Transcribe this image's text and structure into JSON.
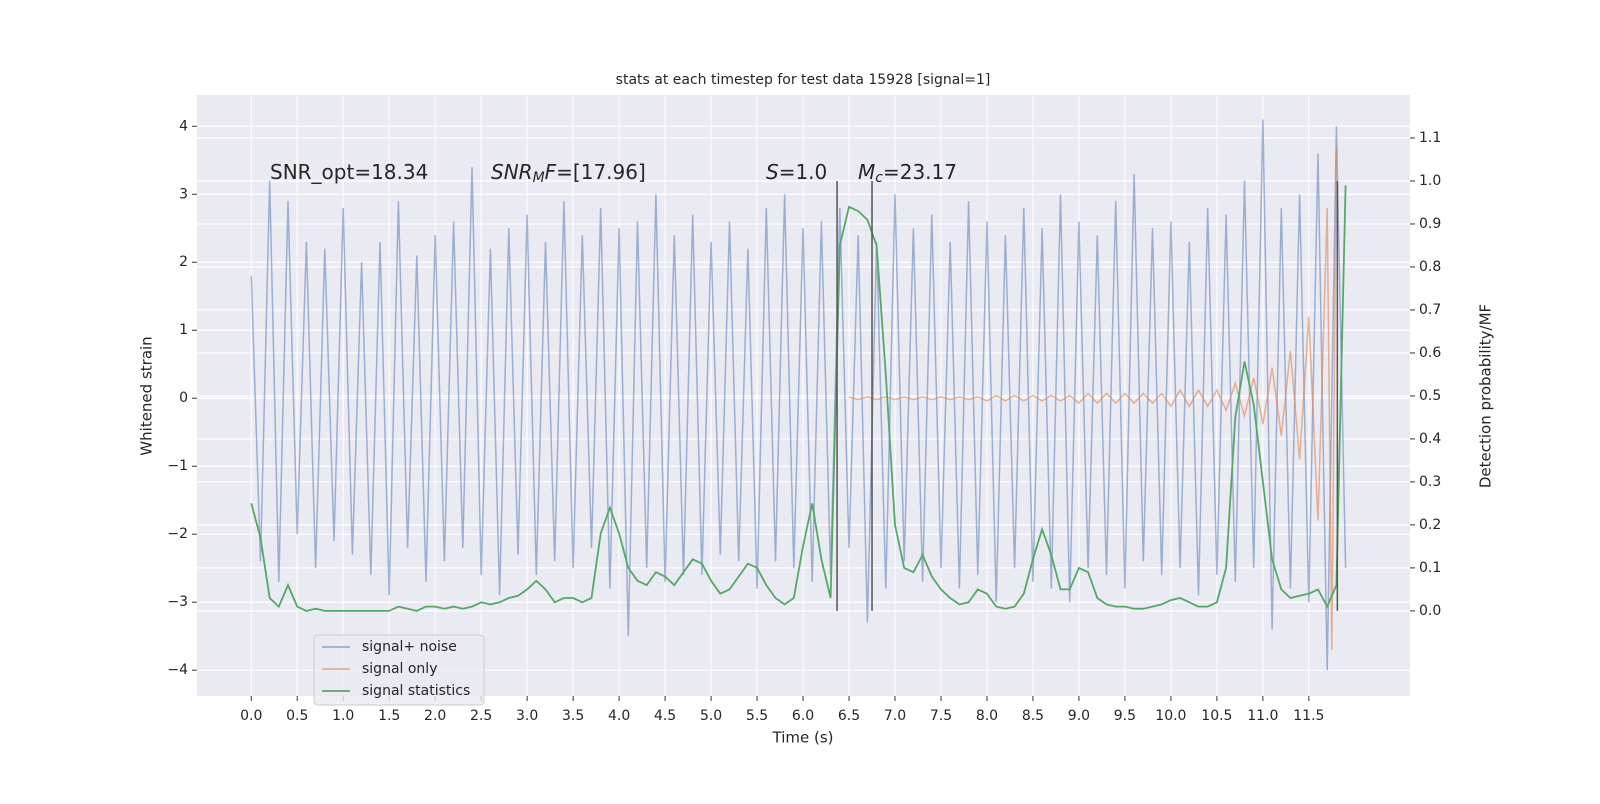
{
  "chart_data": {
    "type": "line",
    "title": "stats at each timestep for test data 15928 [signal=1]",
    "xlabel": "Time (s)",
    "ylabel": "Whitened strain",
    "y2label": "Detection probability/MF",
    "annotations": [
      [
        {
          "text": "SNR_opt=18.34",
          "style": "normal"
        }
      ],
      [
        {
          "text": "SNR",
          "style": "italic"
        },
        {
          "text": "M",
          "style": "sub"
        },
        {
          "text": "F",
          "style": "italic"
        },
        {
          "text": "=[17.96]",
          "style": "normal"
        }
      ],
      [
        {
          "text": "S",
          "style": "italic"
        },
        {
          "text": "=1.0",
          "style": "normal"
        }
      ],
      [
        {
          "text": "M",
          "style": "italic"
        },
        {
          "text": "c",
          "style": "sub"
        },
        {
          "text": "=23.17",
          "style": "normal"
        }
      ]
    ],
    "x": [
      0,
      0.1,
      0.2,
      0.3,
      0.4,
      0.5,
      0.6,
      0.7,
      0.8,
      0.9,
      1,
      1.1,
      1.2,
      1.3,
      1.4,
      1.5,
      1.6,
      1.7,
      1.8,
      1.9,
      2,
      2.1,
      2.2,
      2.3,
      2.4,
      2.5,
      2.6,
      2.7,
      2.8,
      2.9,
      3,
      3.1,
      3.2,
      3.3,
      3.4,
      3.5,
      3.6,
      3.7,
      3.8,
      3.9,
      4,
      4.1,
      4.2,
      4.3,
      4.4,
      4.5,
      4.6,
      4.7,
      4.8,
      4.9,
      5,
      5.1,
      5.2,
      5.3,
      5.4,
      5.5,
      5.6,
      5.7,
      5.8,
      5.9,
      6,
      6.1,
      6.2,
      6.3,
      6.4,
      6.5,
      6.6,
      6.7,
      6.8,
      6.9,
      7,
      7.1,
      7.2,
      7.3,
      7.4,
      7.5,
      7.6,
      7.7,
      7.8,
      7.9,
      8,
      8.1,
      8.2,
      8.3,
      8.4,
      8.5,
      8.6,
      8.7,
      8.8,
      8.9,
      9,
      9.1,
      9.2,
      9.3,
      9.4,
      9.5,
      9.6,
      9.7,
      9.8,
      9.9,
      10,
      10.1,
      10.2,
      10.3,
      10.4,
      10.5,
      10.6,
      10.7,
      10.8,
      10.9,
      11,
      11.1,
      11.2,
      11.3,
      11.4,
      11.5,
      11.6,
      11.7,
      11.8,
      11.9
    ],
    "series": [
      {
        "name": "signal+ noise",
        "color": "#4c72b0",
        "opacity": 0.5,
        "axis": "y",
        "values": [
          1.8,
          -2.4,
          3.2,
          -2.7,
          2.9,
          -2.0,
          2.3,
          -2.5,
          2.2,
          -2.1,
          2.8,
          -2.3,
          2.0,
          -2.6,
          2.3,
          -2.9,
          2.9,
          -2.2,
          2.1,
          -2.7,
          2.4,
          -2.4,
          2.6,
          -2.2,
          3.4,
          -2.6,
          2.2,
          -2.9,
          2.5,
          -2.3,
          2.7,
          -2.6,
          2.3,
          -2.4,
          2.9,
          -2.5,
          2.4,
          -2.2,
          2.8,
          -2.8,
          2.5,
          -3.5,
          2.6,
          -2.5,
          3.0,
          -2.7,
          2.4,
          -2.6,
          2.7,
          -2.6,
          2.3,
          -2.3,
          2.6,
          -2.4,
          2.2,
          -2.8,
          2.8,
          -2.4,
          3.0,
          -2.5,
          2.5,
          -2.7,
          2.6,
          -2.6,
          2.8,
          -2.2,
          2.4,
          -3.3,
          2.3,
          -2.8,
          3.0,
          -2.4,
          2.5,
          -2.7,
          2.7,
          -2.5,
          2.3,
          -2.8,
          2.9,
          -2.6,
          2.6,
          -3.0,
          2.4,
          -2.5,
          2.8,
          -2.7,
          2.5,
          -2.8,
          3.0,
          -3.0,
          2.6,
          -2.5,
          2.4,
          -2.6,
          2.9,
          -2.8,
          3.3,
          -2.4,
          2.5,
          -2.6,
          2.6,
          -2.5,
          2.3,
          -2.9,
          2.8,
          -2.6,
          2.7,
          -2.7,
          3.2,
          -2.5,
          4.1,
          -3.4,
          2.8,
          -2.8,
          3.0,
          -3.0,
          3.6,
          -4.0,
          4.0,
          -2.5
        ]
      },
      {
        "name": "signal only",
        "color": "#dd8452",
        "opacity": 0.6,
        "axis": "y",
        "x": [
          6.5,
          6.6,
          6.7,
          6.8,
          6.9,
          7,
          7.1,
          7.2,
          7.3,
          7.4,
          7.5,
          7.6,
          7.7,
          7.8,
          7.9,
          8,
          8.1,
          8.2,
          8.3,
          8.4,
          8.5,
          8.6,
          8.7,
          8.8,
          8.9,
          9,
          9.1,
          9.2,
          9.3,
          9.4,
          9.5,
          9.6,
          9.7,
          9.8,
          9.9,
          10,
          10.1,
          10.2,
          10.3,
          10.4,
          10.5,
          10.6,
          10.7,
          10.8,
          10.9,
          11,
          11.1,
          11.2,
          11.3,
          11.4,
          11.5,
          11.6,
          11.7,
          11.75,
          11.8
        ],
        "values": [
          0.02,
          -0.02,
          0.02,
          -0.02,
          0.02,
          -0.02,
          0.02,
          -0.02,
          0.02,
          -0.02,
          0.02,
          -0.02,
          0.02,
          -0.02,
          0.02,
          -0.04,
          0.04,
          -0.04,
          0.04,
          -0.04,
          0.04,
          -0.04,
          0.04,
          -0.04,
          0.04,
          -0.07,
          0.07,
          -0.07,
          0.07,
          -0.07,
          0.07,
          -0.07,
          0.07,
          -0.07,
          0.07,
          -0.12,
          0.12,
          -0.12,
          0.12,
          -0.12,
          0.12,
          -0.18,
          0.22,
          -0.26,
          0.3,
          -0.38,
          0.45,
          -0.55,
          0.7,
          -0.9,
          1.2,
          -1.8,
          2.8,
          -3.7,
          3.7
        ]
      },
      {
        "name": "signal statistics",
        "color": "#55a868",
        "opacity": 1,
        "axis": "y2",
        "values": [
          0.25,
          0.17,
          0.03,
          0.01,
          0.06,
          0.01,
          0.0,
          0.005,
          0.0,
          0.0,
          0.0,
          0.0,
          0.0,
          0.0,
          0.0,
          0.0,
          0.01,
          0.005,
          0.0,
          0.01,
          0.01,
          0.005,
          0.01,
          0.005,
          0.01,
          0.02,
          0.015,
          0.02,
          0.03,
          0.035,
          0.05,
          0.07,
          0.05,
          0.02,
          0.03,
          0.03,
          0.02,
          0.03,
          0.18,
          0.24,
          0.18,
          0.1,
          0.07,
          0.06,
          0.09,
          0.08,
          0.06,
          0.09,
          0.12,
          0.11,
          0.07,
          0.04,
          0.05,
          0.08,
          0.11,
          0.1,
          0.06,
          0.03,
          0.015,
          0.03,
          0.15,
          0.25,
          0.12,
          0.03,
          0.85,
          0.94,
          0.93,
          0.91,
          0.85,
          0.55,
          0.2,
          0.1,
          0.09,
          0.13,
          0.08,
          0.05,
          0.03,
          0.015,
          0.02,
          0.05,
          0.04,
          0.01,
          0.005,
          0.01,
          0.04,
          0.12,
          0.19,
          0.13,
          0.05,
          0.05,
          0.1,
          0.09,
          0.03,
          0.015,
          0.01,
          0.01,
          0.005,
          0.005,
          0.01,
          0.015,
          0.025,
          0.03,
          0.02,
          0.01,
          0.01,
          0.02,
          0.1,
          0.45,
          0.58,
          0.48,
          0.3,
          0.12,
          0.05,
          0.03,
          0.035,
          0.04,
          0.05,
          0.01,
          0.06,
          0.99
        ]
      }
    ],
    "vlines": {
      "x": [
        6.37,
        6.75,
        11.81
      ],
      "ymin": 0,
      "ymax": 1,
      "axis": "y2",
      "color": "#555555"
    },
    "xlim": [
      -0.59,
      12.6
    ],
    "ylim": [
      -4.38,
      4.46
    ],
    "y2lim": [
      -0.198,
      1.2
    ],
    "xticks": [
      {
        "value": 0,
        "label": "0.0"
      },
      0.5,
      {
        "value": 1,
        "label": "1.0"
      },
      1.5,
      {
        "value": 2,
        "label": "2.0"
      },
      2.5,
      {
        "value": 3,
        "label": "3.0"
      },
      3.5,
      {
        "value": 4,
        "label": "4.0"
      },
      4.5,
      {
        "value": 5,
        "label": "5.0"
      },
      5.5,
      {
        "value": 6,
        "label": "6.0"
      },
      6.5,
      {
        "value": 7,
        "label": "7.0"
      },
      7.5,
      {
        "value": 8,
        "label": "8.0"
      },
      8.5,
      {
        "value": 9,
        "label": "9.0"
      },
      9.5,
      {
        "value": 10,
        "label": "10.0"
      },
      10.5,
      {
        "value": 11,
        "label": "11.0"
      },
      11.5
    ],
    "yticks": [
      {
        "value": -4,
        "label": "−4"
      },
      {
        "value": -3,
        "label": "−3"
      },
      {
        "value": -2,
        "label": "−2"
      },
      {
        "value": -1,
        "label": "−1"
      },
      0,
      1,
      2,
      3,
      4
    ],
    "y2ticks": [
      {
        "value": 0,
        "label": "0.0"
      },
      0.1,
      0.2,
      0.3,
      0.4,
      0.5,
      0.6,
      0.7,
      0.8,
      0.9,
      {
        "value": 1,
        "label": "1.0"
      },
      1.1
    ],
    "grid": true,
    "legend": "lower left"
  }
}
